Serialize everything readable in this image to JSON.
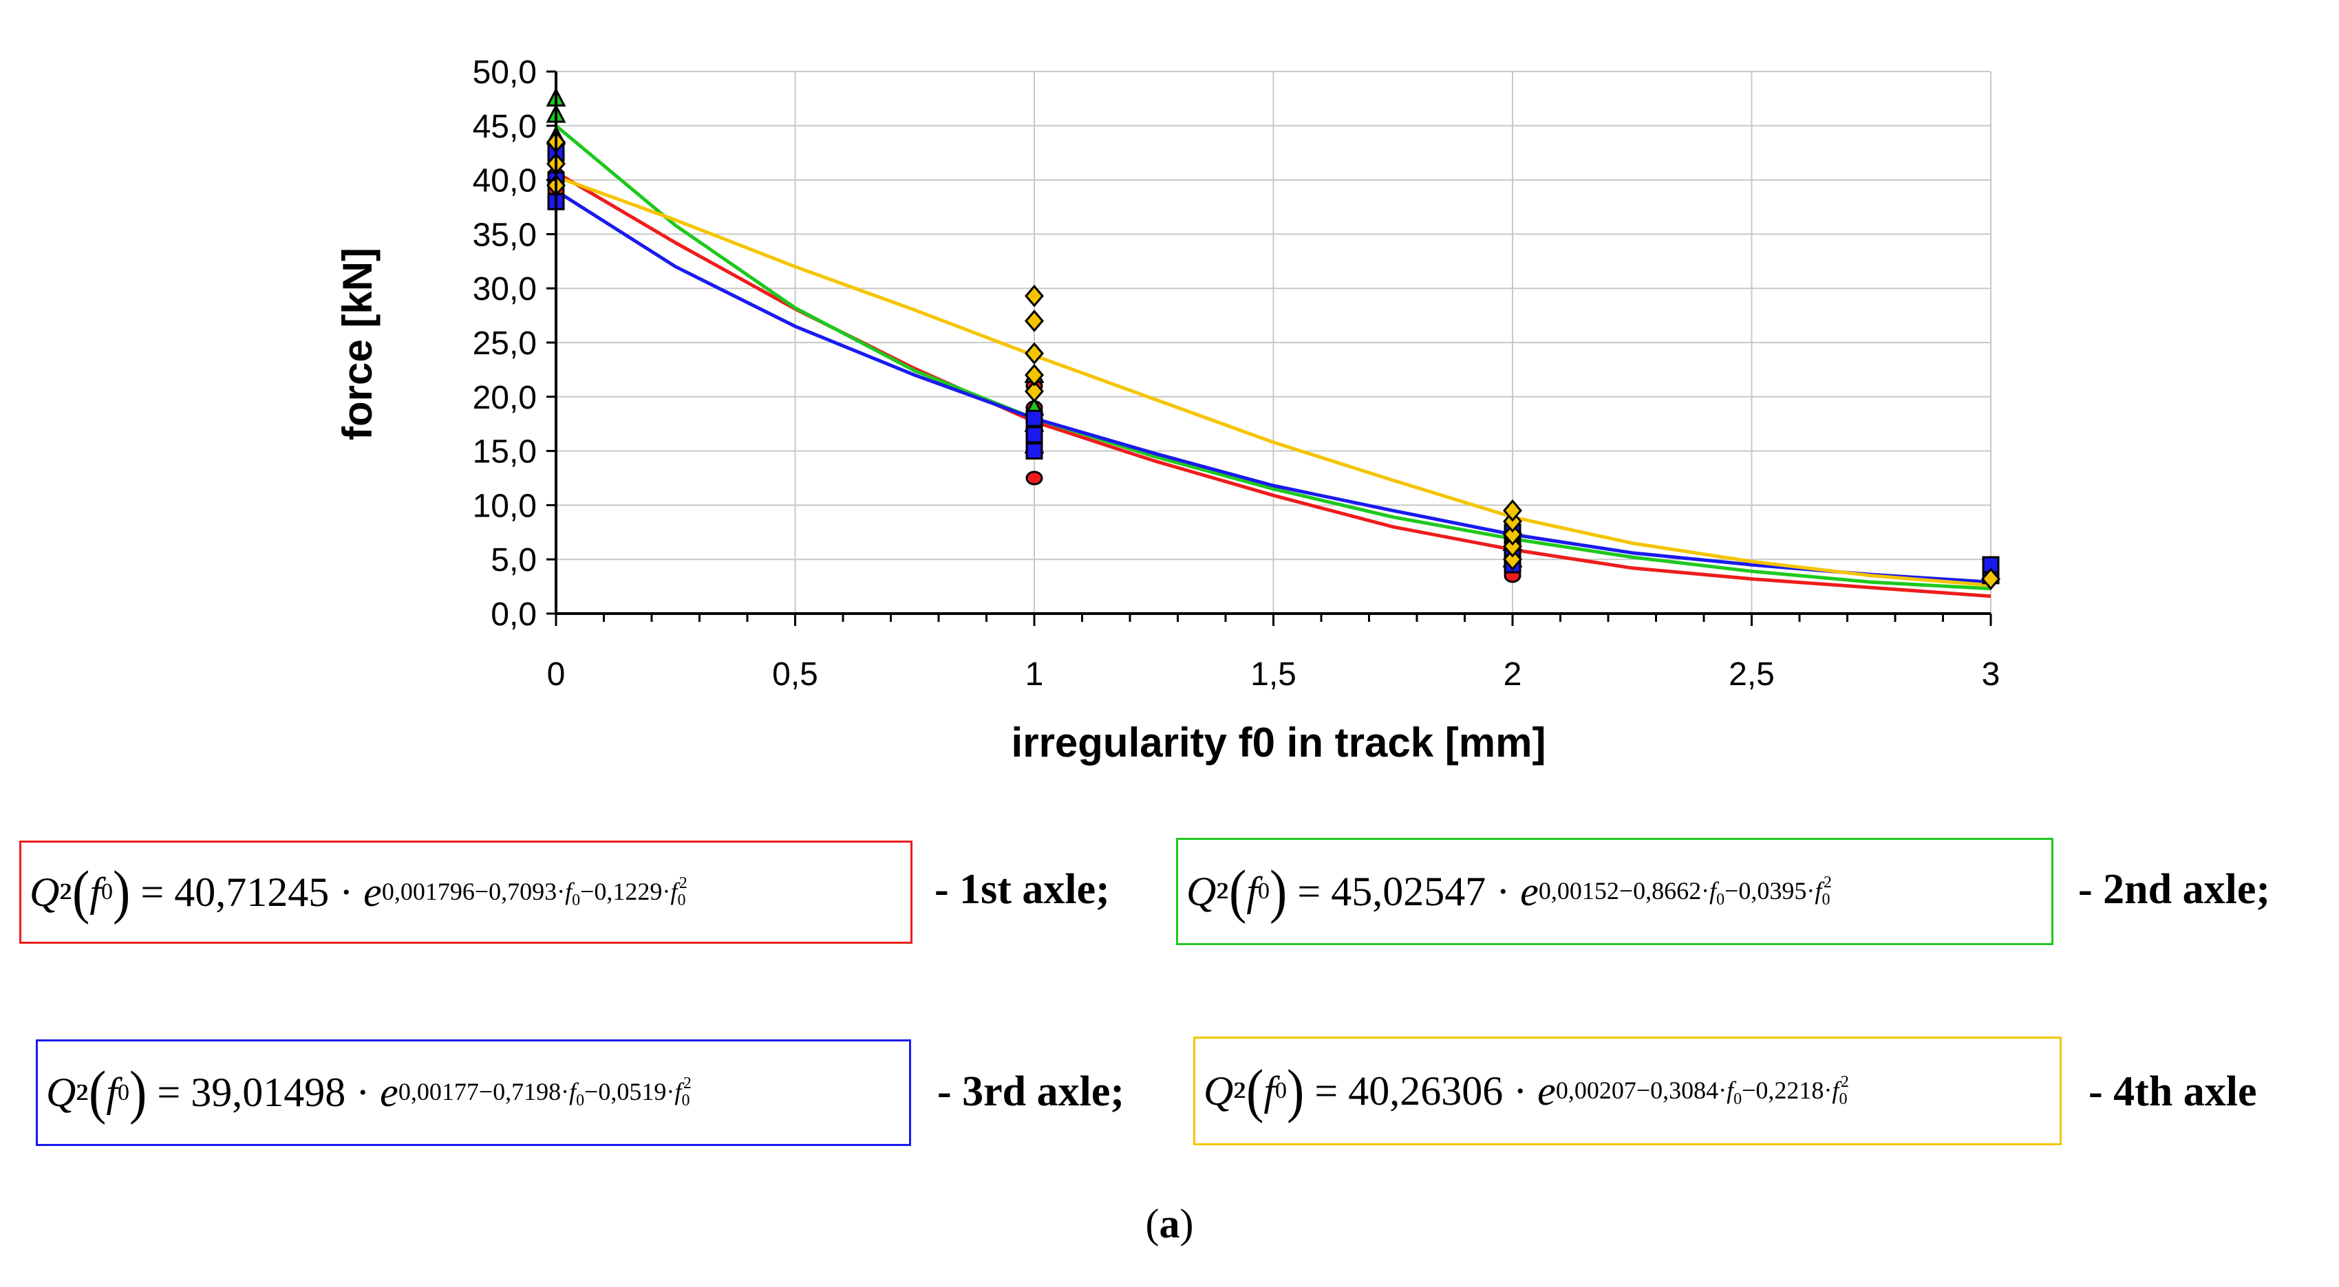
{
  "chart_data": {
    "type": "line",
    "xlabel": "irregularity f0 in track [mm]",
    "ylabel": "force [kN]",
    "xlim": [
      0,
      3
    ],
    "ylim": [
      0,
      50
    ],
    "x_ticks": [
      "0",
      "0,5",
      "1",
      "1,5",
      "2",
      "2,5",
      "3"
    ],
    "x_tick_values": [
      0,
      0.5,
      1,
      1.5,
      2,
      2.5,
      3
    ],
    "y_ticks": [
      "0,0",
      "5,0",
      "10,0",
      "15,0",
      "20,0",
      "25,0",
      "30,0",
      "35,0",
      "40,0",
      "45,0",
      "50,0"
    ],
    "y_tick_values": [
      0,
      5,
      10,
      15,
      20,
      25,
      30,
      35,
      40,
      45,
      50
    ],
    "grid": true,
    "series": [
      {
        "name": "1st axle",
        "color": "#ee1c1c",
        "x": [
          0,
          0.25,
          0.5,
          0.75,
          1,
          1.25,
          1.5,
          1.75,
          2,
          2.25,
          2.5,
          2.75,
          3
        ],
        "y": [
          40.7,
          34.2,
          28.1,
          22.6,
          17.7,
          14.1,
          10.9,
          8.0,
          5.9,
          4.2,
          3.2,
          2.4,
          1.6
        ],
        "points": [
          [
            0,
            42
          ],
          [
            0,
            40.5
          ],
          [
            0,
            39
          ],
          [
            1,
            12.5
          ],
          [
            1,
            15
          ],
          [
            1,
            17
          ],
          [
            1,
            19
          ],
          [
            1,
            21
          ],
          [
            2,
            3.5
          ],
          [
            2,
            5
          ],
          [
            2,
            6.5
          ],
          [
            2,
            8
          ]
        ]
      },
      {
        "name": "2nd axle",
        "color": "#1ec81e",
        "x": [
          0,
          0.25,
          0.5,
          0.75,
          1,
          1.25,
          1.5,
          1.75,
          2,
          2.25,
          2.5,
          2.75,
          3
        ],
        "y": [
          45.0,
          35.8,
          28.2,
          22.4,
          18.0,
          14.5,
          11.5,
          8.9,
          6.9,
          5.2,
          3.9,
          2.9,
          2.3
        ],
        "points": [
          [
            0,
            47.5
          ],
          [
            0,
            46
          ],
          [
            0,
            44
          ],
          [
            1,
            15.5
          ],
          [
            1,
            17.5
          ],
          [
            1,
            19
          ],
          [
            1,
            22
          ],
          [
            2,
            5
          ],
          [
            2,
            6.5
          ],
          [
            2,
            8
          ]
        ]
      },
      {
        "name": "3rd axle",
        "color": "#1a1aee",
        "x": [
          0,
          0.25,
          0.5,
          0.75,
          1,
          1.25,
          1.5,
          1.75,
          2,
          2.25,
          2.5,
          2.75,
          3
        ],
        "y": [
          39.0,
          32.0,
          26.5,
          22.0,
          18.0,
          14.8,
          11.8,
          9.5,
          7.3,
          5.6,
          4.5,
          3.6,
          2.9
        ],
        "points": [
          [
            0,
            38
          ],
          [
            0,
            40
          ],
          [
            0,
            42.5
          ],
          [
            1,
            15
          ],
          [
            1,
            16.5
          ],
          [
            1,
            18
          ],
          [
            2,
            4.5
          ],
          [
            2,
            6
          ],
          [
            2,
            7.5
          ],
          [
            3,
            3.5
          ],
          [
            3,
            4.5
          ]
        ]
      },
      {
        "name": "4th axle",
        "color": "#f5c400",
        "x": [
          0,
          0.25,
          0.5,
          0.75,
          1,
          1.25,
          1.5,
          1.75,
          2,
          2.25,
          2.5,
          2.75,
          3
        ],
        "y": [
          40.3,
          36.3,
          32.0,
          28.0,
          23.8,
          19.8,
          15.8,
          12.3,
          8.9,
          6.5,
          4.8,
          3.5,
          2.6
        ],
        "points": [
          [
            0,
            39.5
          ],
          [
            0,
            41.5
          ],
          [
            0,
            43.5
          ],
          [
            1,
            20.5
          ],
          [
            1,
            22
          ],
          [
            1,
            24
          ],
          [
            1,
            27
          ],
          [
            1,
            29.3
          ],
          [
            2,
            5
          ],
          [
            2,
            6.2
          ],
          [
            2,
            7.3
          ],
          [
            2,
            8.5
          ],
          [
            2,
            9.5
          ],
          [
            3,
            3.2
          ]
        ]
      }
    ]
  },
  "equations": [
    {
      "coef": "40,71245",
      "exp_a": "0,001796−0,7093·",
      "exp_b": "−0,1229·",
      "label": "- 1st axle;",
      "color": "#ee1c1c"
    },
    {
      "coef": "45,02547",
      "exp_a": "0,00152−0,8662·",
      "exp_b": "−0,0395·",
      "label": "- 2nd axle;",
      "color": "#1ec81e"
    },
    {
      "coef": "39,01498",
      "exp_a": "0,00177−0,7198·",
      "exp_b": "−0,0519·",
      "label": "- 3rd axle;",
      "color": "#1a1aee"
    },
    {
      "coef": "40,26306",
      "exp_a": "0,00207−0,3084·",
      "exp_b": "−0,2218·",
      "label": "- 4th axle",
      "color": "#f5c400"
    }
  ],
  "caption": {
    "open": "(",
    "letter": "a",
    "close": ")"
  }
}
